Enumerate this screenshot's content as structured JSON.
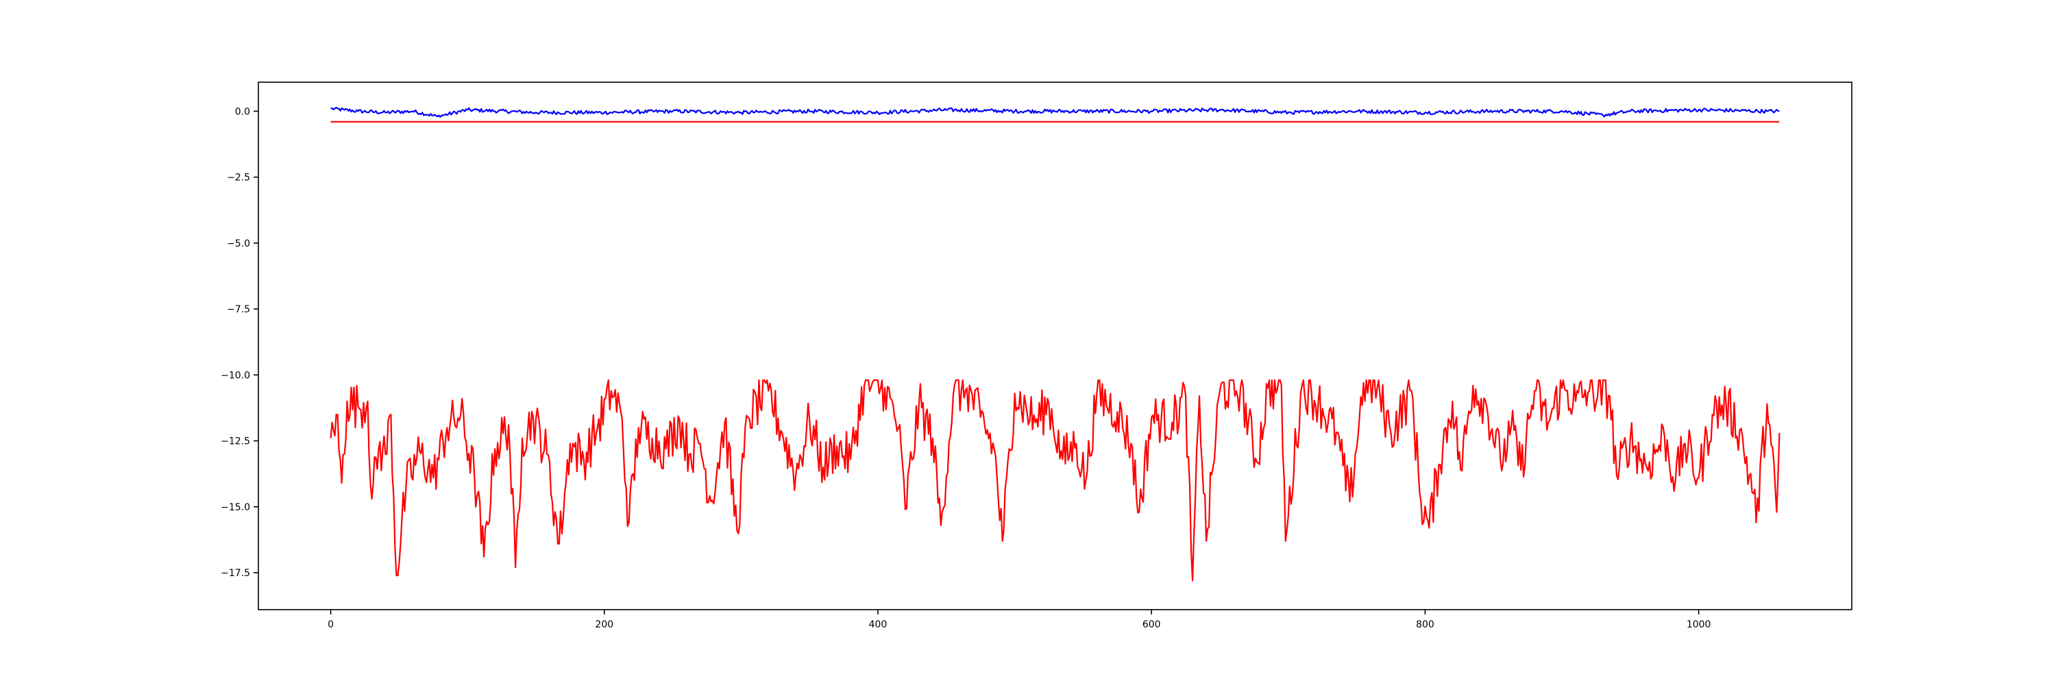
{
  "chart_data": {
    "type": "line",
    "title": "",
    "xlabel": "",
    "ylabel": "",
    "xlim": [
      -52.9,
      1111.9
    ],
    "ylim": [
      -18.9,
      1.1
    ],
    "x_ticks": [
      0,
      200,
      400,
      600,
      800,
      1000
    ],
    "x_tick_labels": [
      "0",
      "200",
      "400",
      "600",
      "800",
      "1000"
    ],
    "y_ticks": [
      0.0,
      -2.5,
      -5.0,
      -7.5,
      -10.0,
      -12.5,
      -15.0,
      -17.5
    ],
    "y_tick_labels": [
      "0.0",
      "−2.5",
      "−5.0",
      "−7.5",
      "−10.0",
      "−12.5",
      "−15.0",
      "−17.5"
    ],
    "grid": false,
    "legend": "none",
    "series": [
      {
        "color": "#0000ff",
        "x_range": [
          0,
          1059
        ],
        "sampled_points": [
          [
            0,
            0.1
          ],
          [
            10,
            0.05
          ],
          [
            20,
            0.0
          ],
          [
            40,
            -0.05
          ],
          [
            60,
            0.0
          ],
          [
            78,
            -0.2
          ],
          [
            100,
            0.05
          ],
          [
            150,
            -0.05
          ],
          [
            200,
            -0.05
          ],
          [
            250,
            0.0
          ],
          [
            300,
            -0.05
          ],
          [
            350,
            0.0
          ],
          [
            400,
            -0.05
          ],
          [
            450,
            0.05
          ],
          [
            500,
            0.0
          ],
          [
            550,
            0.0
          ],
          [
            600,
            0.0
          ],
          [
            650,
            0.05
          ],
          [
            700,
            -0.05
          ],
          [
            750,
            0.0
          ],
          [
            800,
            -0.05
          ],
          [
            850,
            0.0
          ],
          [
            900,
            0.0
          ],
          [
            930,
            -0.15
          ],
          [
            950,
            0.0
          ],
          [
            1000,
            0.05
          ],
          [
            1050,
            0.0
          ],
          [
            1059,
            0.0
          ]
        ]
      },
      {
        "color": "#ff0000",
        "x_range": [
          0,
          1059
        ],
        "constant_value": -0.4
      },
      {
        "color": "#ff0000",
        "x_range": [
          0,
          1059
        ],
        "sampled_points": [
          [
            0,
            -12.4
          ],
          [
            4,
            -11.5
          ],
          [
            8,
            -14.1
          ],
          [
            12,
            -11.0
          ],
          [
            20,
            -11.2
          ],
          [
            27,
            -11.0
          ],
          [
            30,
            -14.7
          ],
          [
            35,
            -12.8
          ],
          [
            40,
            -13.0
          ],
          [
            44,
            -11.5
          ],
          [
            48,
            -17.6
          ],
          [
            55,
            -14.3
          ],
          [
            65,
            -12.9
          ],
          [
            75,
            -13.9
          ],
          [
            85,
            -12.0
          ],
          [
            95,
            -11.5
          ],
          [
            105,
            -13.8
          ],
          [
            112,
            -16.9
          ],
          [
            120,
            -12.8
          ],
          [
            130,
            -11.9
          ],
          [
            135,
            -17.3
          ],
          [
            140,
            -12.4
          ],
          [
            148,
            -11.6
          ],
          [
            158,
            -13.0
          ],
          [
            167,
            -16.4
          ],
          [
            175,
            -12.6
          ],
          [
            185,
            -13.2
          ],
          [
            195,
            -12.0
          ],
          [
            205,
            -10.6
          ],
          [
            212,
            -11.4
          ],
          [
            218,
            -15.6
          ],
          [
            225,
            -12.0
          ],
          [
            235,
            -12.4
          ],
          [
            245,
            -12.8
          ],
          [
            255,
            -11.7
          ],
          [
            262,
            -13.0
          ],
          [
            270,
            -12.6
          ],
          [
            278,
            -14.8
          ],
          [
            288,
            -11.8
          ],
          [
            297,
            -15.9
          ],
          [
            305,
            -11.6
          ],
          [
            320,
            -10.6
          ],
          [
            330,
            -12.2
          ],
          [
            340,
            -13.8
          ],
          [
            350,
            -11.7
          ],
          [
            360,
            -13.5
          ],
          [
            370,
            -12.7
          ],
          [
            380,
            -13.2
          ],
          [
            390,
            -10.4
          ],
          [
            405,
            -10.5
          ],
          [
            415,
            -12.0
          ],
          [
            420,
            -15.1
          ],
          [
            430,
            -11.1
          ],
          [
            440,
            -12.4
          ],
          [
            446,
            -15.7
          ],
          [
            455,
            -10.8
          ],
          [
            465,
            -10.5
          ],
          [
            475,
            -11.6
          ],
          [
            485,
            -12.8
          ],
          [
            491,
            -16.3
          ],
          [
            500,
            -10.7
          ],
          [
            515,
            -11.8
          ],
          [
            525,
            -11.1
          ],
          [
            535,
            -13.2
          ],
          [
            545,
            -12.6
          ],
          [
            552,
            -14.0
          ],
          [
            560,
            -10.7
          ],
          [
            575,
            -11.4
          ],
          [
            585,
            -12.6
          ],
          [
            591,
            -15.2
          ],
          [
            600,
            -11.6
          ],
          [
            615,
            -11.8
          ],
          [
            625,
            -10.8
          ],
          [
            630,
            -18.0
          ],
          [
            635,
            -10.8
          ],
          [
            640,
            -16.3
          ],
          [
            650,
            -10.6
          ],
          [
            665,
            -10.5
          ],
          [
            677,
            -13.3
          ],
          [
            685,
            -10.5
          ],
          [
            695,
            -10.4
          ],
          [
            698,
            -16.3
          ],
          [
            710,
            -10.4
          ],
          [
            722,
            -11.0
          ],
          [
            735,
            -12.2
          ],
          [
            745,
            -14.8
          ],
          [
            755,
            -10.3
          ],
          [
            765,
            -10.5
          ],
          [
            775,
            -12.2
          ],
          [
            790,
            -10.6
          ],
          [
            797,
            -14.8
          ],
          [
            803,
            -15.8
          ],
          [
            810,
            -13.4
          ],
          [
            820,
            -11.0
          ],
          [
            826,
            -13.6
          ],
          [
            835,
            -10.4
          ],
          [
            845,
            -11.2
          ],
          [
            855,
            -13.2
          ],
          [
            865,
            -12.1
          ],
          [
            870,
            -13.6
          ],
          [
            880,
            -10.6
          ],
          [
            890,
            -11.8
          ],
          [
            900,
            -10.5
          ],
          [
            910,
            -11.0
          ],
          [
            920,
            -10.6
          ],
          [
            935,
            -10.8
          ],
          [
            940,
            -13.8
          ],
          [
            950,
            -12.4
          ],
          [
            962,
            -13.5
          ],
          [
            975,
            -12.3
          ],
          [
            983,
            -14.0
          ],
          [
            990,
            -12.6
          ],
          [
            1000,
            -13.9
          ],
          [
            1010,
            -11.5
          ],
          [
            1020,
            -11.1
          ],
          [
            1030,
            -12.1
          ],
          [
            1040,
            -14.5
          ],
          [
            1042,
            -15.6
          ],
          [
            1050,
            -11.1
          ],
          [
            1057,
            -15.2
          ],
          [
            1059,
            -12.2
          ]
        ]
      }
    ]
  }
}
